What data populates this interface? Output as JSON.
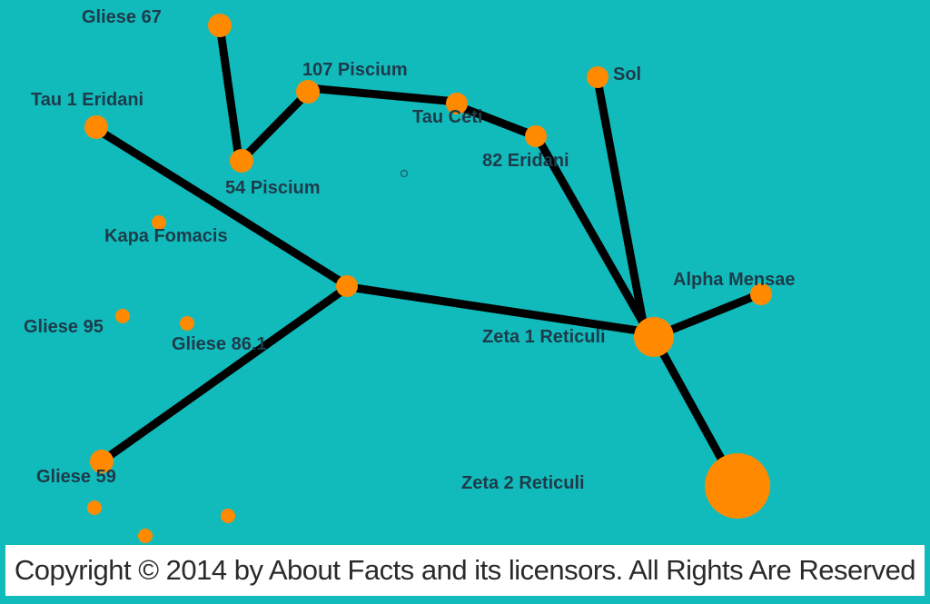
{
  "colors": {
    "background": "#12bbbb",
    "star": "#ff8a00",
    "link": "#000000",
    "label": "#1d3b4a"
  },
  "stars": [
    {
      "id": "gliese-67",
      "label": "Gliese 67"
    },
    {
      "id": "107-piscium",
      "label": "107 Piscium"
    },
    {
      "id": "tau-ceti",
      "label": "Tau Ceti"
    },
    {
      "id": "sol",
      "label": "Sol"
    },
    {
      "id": "tau-1-eridani",
      "label": "Tau 1 Eridani"
    },
    {
      "id": "82-eridani",
      "label": "82 Eridani"
    },
    {
      "id": "54-piscium",
      "label": "54 Piscium"
    },
    {
      "id": "kapa-fomacis",
      "label": "Kapa Fomacis"
    },
    {
      "id": "alpha-mensae",
      "label": "Alpha Mensae"
    },
    {
      "id": "gliese-95",
      "label": "Gliese 95"
    },
    {
      "id": "gliese-86-1",
      "label": "Gliese 86.1"
    },
    {
      "id": "zeta-1-reticuli",
      "label": "Zeta 1 Reticuli"
    },
    {
      "id": "gliese-59",
      "label": "Gliese 59"
    },
    {
      "id": "zeta-2-reticuli",
      "label": "Zeta 2 Reticuli"
    }
  ],
  "footer": {
    "copyright": "Copyright © 2014 by About Facts and its licensors. All Rights Are Reserved"
  }
}
